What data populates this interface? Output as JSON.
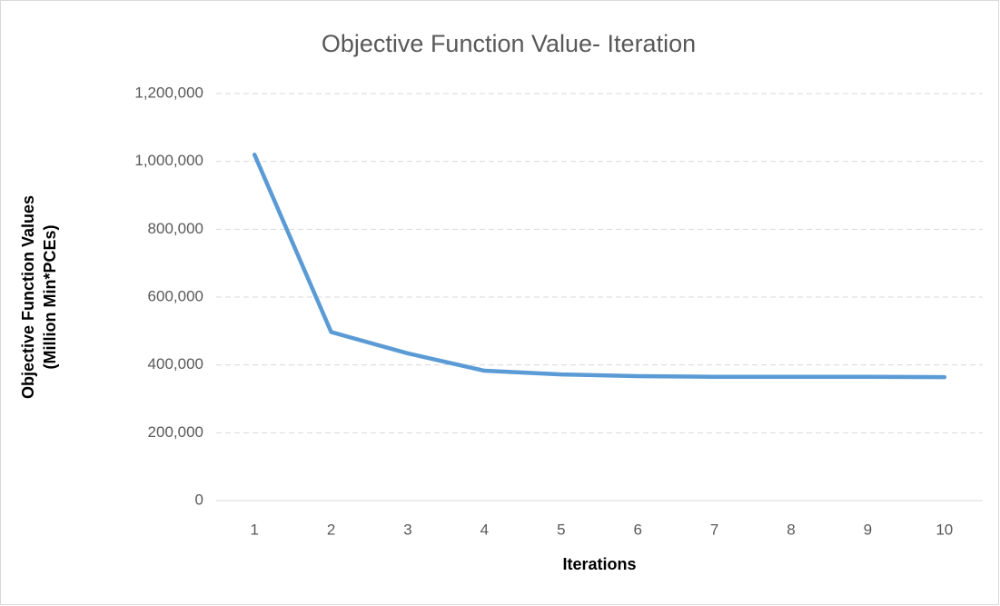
{
  "chart_data": {
    "type": "line",
    "title": "Objective Function Value- Iteration",
    "x_label": "Iterations",
    "y_label": [
      "Objective Function Values",
      "(Million Min*PCEs)"
    ],
    "categories": [
      "1",
      "2",
      "3",
      "4",
      "5",
      "6",
      "7",
      "8",
      "9",
      "10"
    ],
    "series": [
      {
        "name": "Objective Function Value",
        "color": "#5b9bd5",
        "values": [
          1020000,
          497000,
          434000,
          383000,
          372000,
          367000,
          365000,
          365000,
          365000,
          364000
        ]
      }
    ],
    "ylim": [
      0,
      1200000
    ],
    "yticks": [
      0,
      {
        "value": 200000,
        "label": "200,000"
      },
      {
        "value": 400000,
        "label": "400,000"
      },
      {
        "value": 600000,
        "label": "600,000"
      },
      {
        "value": 800000,
        "label": "800,000"
      },
      {
        "value": 1000000,
        "label": "1,000,000"
      },
      {
        "value": 1200000,
        "label": "1,200,000"
      }
    ],
    "grid": true
  }
}
